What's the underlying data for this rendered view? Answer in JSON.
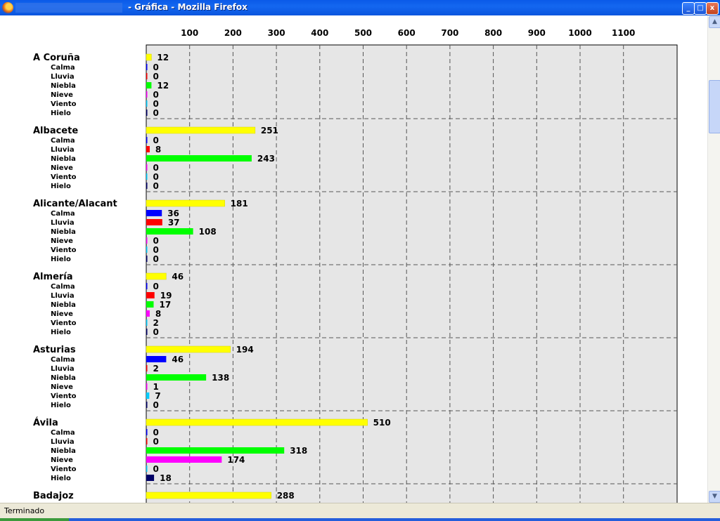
{
  "window": {
    "title": "- Gráfica - Mozilla Firefox",
    "minimize_label": "_",
    "maximize_label": "□",
    "close_label": "x"
  },
  "status_bar": {
    "text": "Terminado"
  },
  "colors": {
    "total": "#ffff00",
    "Calma": "#0000ff",
    "Lluvia": "#ff0000",
    "Niebla": "#00ff00",
    "Nieve": "#ff00ff",
    "Viento": "#00ccff",
    "Hielo": "#000066",
    "plot_background": "#e6e6e6"
  },
  "chart_data": {
    "type": "bar",
    "orientation": "horizontal",
    "x_ticks": [
      100,
      200,
      300,
      400,
      500,
      600,
      700,
      800,
      900,
      1000,
      1100
    ],
    "xlim": [
      0,
      1200
    ],
    "grid": true,
    "categories": [
      "Calma",
      "Lluvia",
      "Niebla",
      "Nieve",
      "Viento",
      "Hielo"
    ],
    "groups": [
      {
        "name": "A Coruña",
        "total": 12,
        "values": [
          0,
          0,
          12,
          0,
          0,
          0
        ]
      },
      {
        "name": "Albacete",
        "total": 251,
        "values": [
          0,
          8,
          243,
          0,
          0,
          0
        ]
      },
      {
        "name": "Alicante/Alacant",
        "total": 181,
        "values": [
          36,
          37,
          108,
          0,
          0,
          0
        ]
      },
      {
        "name": "Almería",
        "total": 46,
        "values": [
          0,
          19,
          17,
          8,
          2,
          0
        ]
      },
      {
        "name": "Asturias",
        "total": 194,
        "values": [
          46,
          2,
          138,
          1,
          7,
          0
        ]
      },
      {
        "name": "Ávila",
        "total": 510,
        "values": [
          0,
          0,
          318,
          174,
          0,
          18
        ]
      },
      {
        "name": "Badajoz",
        "total": 288,
        "values": []
      }
    ]
  }
}
